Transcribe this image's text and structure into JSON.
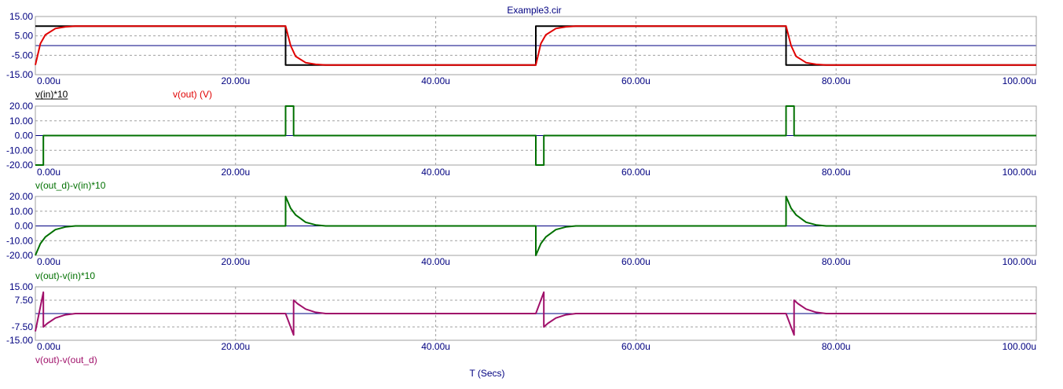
{
  "window": {
    "title": "Example3.cir"
  },
  "chart_data": {
    "type": "line",
    "title": "Example3.cir",
    "xlabel": "T (Secs)",
    "x_range": [
      0,
      100
    ],
    "x_tick_labels": [
      "0.00u",
      "20.00u",
      "40.00u",
      "60.00u",
      "80.00u",
      "100.00u"
    ],
    "x_tick_values": [
      0,
      20,
      40,
      60,
      80,
      100
    ],
    "grid": true,
    "panels": [
      {
        "ylim": [
          -15,
          15
        ],
        "y_tick_labels": [
          "15.00",
          "5.00",
          "-5.00",
          "-15.00"
        ],
        "y_tick_values": [
          15,
          5,
          -5,
          -15
        ],
        "series": [
          {
            "name": "v(in)*10",
            "color": "#000000",
            "legend_label": "v(in)*10",
            "x": [
              0,
              25,
              25,
              50,
              50,
              75,
              75,
              100
            ],
            "y": [
              10,
              10,
              -10,
              -10,
              10,
              10,
              -10,
              -10
            ]
          },
          {
            "name": "v(out)",
            "color": "#e00000",
            "legend_label": "v(out) (V)",
            "x": [
              0,
              0.5,
              1,
              2,
              3,
              4,
              25,
              25.5,
              26,
              27,
              28,
              29,
              50,
              50.5,
              51,
              52,
              53,
              54,
              75,
              75.5,
              76,
              77,
              78,
              79,
              100
            ],
            "y": [
              -10,
              1,
              5.5,
              8.8,
              9.7,
              10,
              10,
              0,
              -5.5,
              -8.8,
              -9.7,
              -10,
              -10,
              1,
              5.5,
              8.8,
              9.7,
              10,
              10,
              0,
              -5.5,
              -8.8,
              -9.7,
              -10,
              -10
            ]
          }
        ]
      },
      {
        "ylim": [
          -20,
          20
        ],
        "y_tick_labels": [
          "20.00",
          "10.00",
          "0.00",
          "-10.00",
          "-20.00"
        ],
        "y_tick_values": [
          20,
          10,
          0,
          -10,
          -20
        ],
        "series": [
          {
            "name": "v(out_d)-v(in)*10",
            "color": "#007000",
            "legend_label": "v(out_d)-v(in)*10",
            "x": [
              0,
              0.8,
              0.8,
              25,
              25,
              25.8,
              25.8,
              50,
              50,
              50.8,
              50.8,
              75,
              75,
              75.8,
              75.8,
              100
            ],
            "y": [
              -20,
              -20,
              0,
              0,
              20,
              20,
              0,
              0,
              -20,
              -20,
              0,
              0,
              20,
              20,
              0,
              0
            ]
          }
        ]
      },
      {
        "ylim": [
          -20,
          20
        ],
        "y_tick_labels": [
          "20.00",
          "10.00",
          "0.00",
          "-10.00",
          "-20.00"
        ],
        "y_tick_values": [
          20,
          10,
          0,
          -10,
          -20
        ],
        "series": [
          {
            "name": "v(out)-v(in)*10",
            "color": "#007000",
            "legend_label": "v(out)-v(in)*10",
            "x": [
              0,
              0.5,
              1,
              2,
              3,
              4,
              25,
              25,
              25.5,
              26,
              27,
              28,
              29,
              50,
              50,
              50.5,
              51,
              52,
              53,
              54,
              75,
              75,
              75.5,
              76,
              77,
              78,
              79,
              100
            ],
            "y": [
              -20,
              -12,
              -7.5,
              -2.5,
              -0.7,
              0,
              0,
              20,
              12,
              7.5,
              2.5,
              0.7,
              0,
              0,
              -20,
              -12,
              -7.5,
              -2.5,
              -0.7,
              0,
              0,
              20,
              12,
              7.5,
              2.5,
              0.7,
              0,
              0
            ]
          }
        ]
      },
      {
        "ylim": [
          -15,
          15
        ],
        "y_tick_labels": [
          "15.00",
          "7.50",
          "-7.50",
          "-15.00"
        ],
        "y_tick_values": [
          15,
          7.5,
          -7.5,
          -15
        ],
        "series": [
          {
            "name": "v(out)-v(out_d)",
            "color": "#a0106a",
            "legend_label": "v(out)-v(out_d)",
            "x": [
              0,
              0.8,
              0.8,
              1.2,
              2,
              3,
              4,
              25,
              25.8,
              25.8,
              26.2,
              27,
              28,
              29,
              50,
              50.8,
              50.8,
              51.2,
              52,
              53,
              54,
              75,
              75.8,
              75.8,
              76.2,
              77,
              78,
              79,
              100
            ],
            "y": [
              -10,
              12,
              -7.5,
              -5.5,
              -2.5,
              -0.7,
              0,
              0,
              -12,
              7.5,
              5.5,
              2.5,
              0.7,
              0,
              0,
              12,
              -7.5,
              -5.5,
              -2.5,
              -0.7,
              0,
              0,
              -12,
              7.5,
              5.5,
              2.5,
              0.7,
              0,
              0
            ]
          }
        ]
      }
    ]
  }
}
